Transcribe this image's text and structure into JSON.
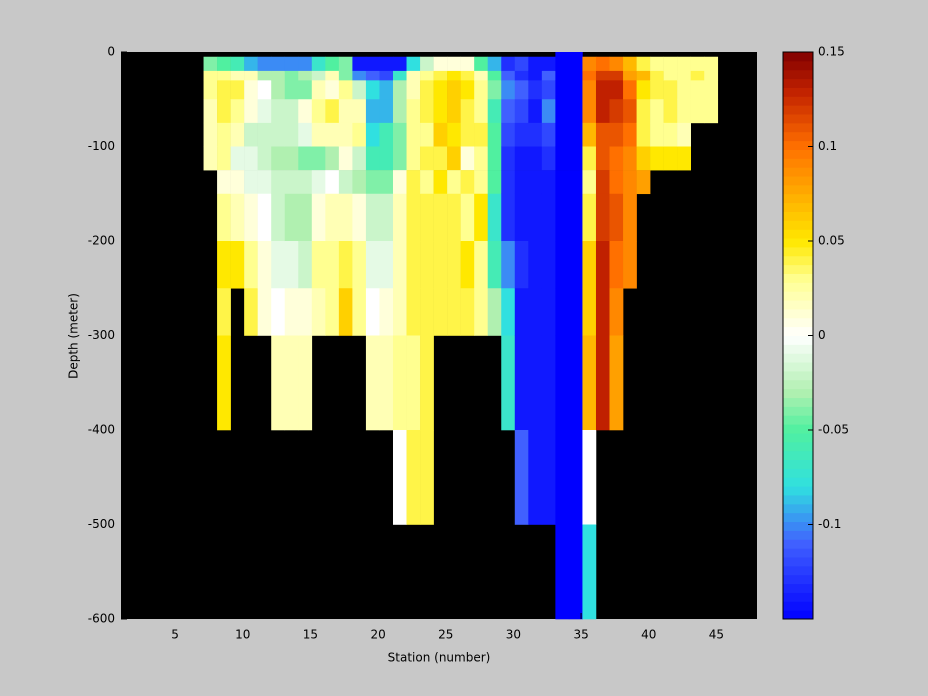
{
  "chart_data": {
    "type": "heatmap",
    "xlabel": "Station (number)",
    "ylabel": "Depth (meter)",
    "xlim": [
      1,
      48
    ],
    "ylim": [
      -600,
      0
    ],
    "xticks": [
      5,
      10,
      15,
      20,
      25,
      30,
      35,
      40,
      45
    ],
    "yticks": [
      0,
      -100,
      -200,
      -300,
      -400,
      -500,
      -600
    ],
    "clim": [
      -0.15,
      0.15
    ],
    "cticks": [
      0.15,
      0.1,
      0.05,
      0,
      -0.05,
      -0.1
    ],
    "colormap": [
      {
        "value": -0.15,
        "color": "#0000ff"
      },
      {
        "value": -0.11,
        "color": "#4060ff"
      },
      {
        "value": -0.08,
        "color": "#30e0e0"
      },
      {
        "value": -0.05,
        "color": "#50f0a0"
      },
      {
        "value": -0.03,
        "color": "#b0f0b0"
      },
      {
        "value": 0,
        "color": "#ffffff"
      },
      {
        "value": 0.03,
        "color": "#ffff90"
      },
      {
        "value": 0.05,
        "color": "#ffe800"
      },
      {
        "value": 0.08,
        "color": "#ffa000"
      },
      {
        "value": 0.1,
        "color": "#ff7000"
      },
      {
        "value": 0.13,
        "color": "#c02000"
      },
      {
        "value": 0.15,
        "color": "#800000"
      }
    ],
    "background": "#000000",
    "x": [
      8,
      9,
      10,
      11,
      12,
      13,
      14,
      15,
      16,
      17,
      18,
      19,
      20,
      21,
      22,
      23,
      24,
      25,
      26,
      27,
      28,
      29,
      30,
      31,
      32,
      33,
      34,
      35,
      36,
      37,
      38,
      39,
      40,
      41,
      42,
      43,
      44,
      45
    ],
    "depth_edges": [
      0,
      -5,
      -20,
      -30,
      -50,
      -75,
      -100,
      -125,
      -150,
      -200,
      -250,
      -300,
      -400,
      -500,
      -600
    ],
    "values": [
      [
        null,
        -0.04,
        0.03,
        0.03,
        0.02,
        0.02,
        0.02,
        null,
        null,
        null,
        null,
        null,
        null,
        null
      ],
      [
        null,
        -0.05,
        0.03,
        0.04,
        0.04,
        0.03,
        0.03,
        0.01,
        0.03,
        0.05,
        0.04,
        0.05,
        null,
        null
      ],
      [
        null,
        -0.06,
        0.02,
        0.04,
        0.03,
        0.02,
        -0.01,
        0.01,
        0.02,
        0.05,
        null,
        null,
        null,
        null
      ],
      [
        null,
        -0.09,
        0.02,
        0.01,
        0.01,
        -0.02,
        -0.01,
        -0.01,
        0.01,
        0.03,
        0.04,
        null,
        null,
        null
      ],
      [
        null,
        -0.1,
        -0.03,
        0,
        -0.01,
        -0.02,
        -0.02,
        -0.01,
        0,
        0.01,
        0.01,
        null,
        null,
        null
      ],
      [
        null,
        -0.1,
        -0.03,
        -0.03,
        -0.02,
        -0.02,
        -0.03,
        -0.02,
        -0.02,
        -0.01,
        0,
        0.02,
        null,
        null
      ],
      [
        null,
        -0.1,
        -0.04,
        -0.04,
        -0.02,
        -0.02,
        -0.03,
        -0.02,
        -0.03,
        -0.01,
        0.01,
        0.02,
        null,
        null
      ],
      [
        null,
        -0.1,
        -0.03,
        -0.04,
        0.01,
        -0.01,
        -0.04,
        -0.02,
        -0.03,
        -0.02,
        0.01,
        0.02,
        null,
        null
      ],
      [
        null,
        -0.07,
        -0.02,
        0.02,
        0.03,
        0.02,
        -0.04,
        -0.01,
        0.01,
        0.03,
        0.02,
        null,
        null,
        null
      ],
      [
        null,
        -0.05,
        0.02,
        0.01,
        0.04,
        0.02,
        -0.03,
        0,
        0.02,
        0.03,
        0.03,
        null,
        null,
        null
      ],
      [
        null,
        -0.04,
        -0.04,
        0.03,
        0.02,
        0.02,
        0.01,
        -0.02,
        0.02,
        0.04,
        0.06,
        null,
        null,
        null
      ],
      [
        null,
        -0.14,
        -0.1,
        -0.02,
        0.02,
        0.03,
        -0.02,
        -0.03,
        0.01,
        0.03,
        0.03,
        null,
        null,
        null
      ],
      [
        null,
        -0.14,
        -0.11,
        -0.08,
        -0.09,
        -0.08,
        -0.06,
        -0.04,
        -0.02,
        -0.01,
        0,
        0.02,
        null,
        null
      ],
      [
        null,
        -0.14,
        -0.12,
        -0.09,
        -0.09,
        -0.06,
        -0.06,
        -0.04,
        -0.02,
        -0.01,
        0.01,
        0.02,
        null,
        null
      ],
      [
        null,
        -0.14,
        -0.07,
        -0.03,
        -0.03,
        -0.04,
        -0.04,
        0.01,
        0.02,
        0.02,
        0.02,
        0.03,
        0,
        null
      ],
      [
        null,
        -0.08,
        0.02,
        0.02,
        0.03,
        0.03,
        0.03,
        0.04,
        0.04,
        0.04,
        0.04,
        0.03,
        0.04,
        null
      ],
      [
        null,
        -0.02,
        0.03,
        0.04,
        0.04,
        0.03,
        0.04,
        0.03,
        0.04,
        0.04,
        0.04,
        0.04,
        0.04,
        null
      ],
      [
        null,
        0.01,
        0.04,
        0.05,
        0.05,
        0.06,
        0.04,
        0.05,
        0.04,
        0.04,
        0.04,
        null,
        null,
        null
      ],
      [
        null,
        0.01,
        0.05,
        0.06,
        0.06,
        0.05,
        0.06,
        0.03,
        0.04,
        0.04,
        0.04,
        null,
        null,
        null
      ],
      [
        null,
        0.01,
        0.04,
        0.05,
        0.04,
        0.04,
        0.01,
        0.04,
        0.03,
        0.05,
        0.04,
        null,
        null,
        null
      ],
      [
        null,
        -0.05,
        0.02,
        0.03,
        0.03,
        0.04,
        0.03,
        0.03,
        0.05,
        0.03,
        0.03,
        null,
        null,
        null
      ],
      [
        null,
        -0.09,
        -0.05,
        -0.04,
        -0.06,
        -0.05,
        -0.05,
        -0.05,
        -0.07,
        -0.06,
        -0.03,
        null,
        null,
        null
      ],
      [
        null,
        -0.13,
        -0.11,
        -0.1,
        -0.11,
        -0.12,
        -0.13,
        -0.13,
        -0.13,
        -0.1,
        -0.08,
        -0.07,
        null,
        null
      ],
      [
        null,
        -0.12,
        -0.13,
        -0.11,
        -0.12,
        -0.13,
        -0.14,
        -0.14,
        -0.14,
        -0.13,
        -0.14,
        -0.14,
        -0.11,
        null
      ],
      [
        null,
        -0.14,
        -0.14,
        -0.13,
        -0.14,
        -0.13,
        -0.14,
        -0.14,
        -0.14,
        -0.14,
        -0.14,
        -0.14,
        -0.14,
        null
      ],
      [
        null,
        -0.14,
        -0.11,
        -0.12,
        -0.1,
        -0.12,
        -0.13,
        -0.14,
        -0.14,
        -0.14,
        -0.14,
        -0.14,
        -0.14,
        null
      ],
      [
        -0.15,
        -0.15,
        -0.15,
        -0.15,
        -0.15,
        -0.15,
        -0.15,
        -0.15,
        -0.15,
        -0.15,
        -0.15,
        -0.15,
        -0.15,
        -0.15
      ],
      [
        -0.15,
        -0.15,
        -0.15,
        -0.15,
        -0.15,
        -0.15,
        -0.15,
        -0.15,
        -0.15,
        -0.15,
        -0.15,
        -0.15,
        -0.15,
        -0.15
      ],
      [
        null,
        0.09,
        0.1,
        0.09,
        0.09,
        0.07,
        0.04,
        0.03,
        0.04,
        0.06,
        0.06,
        0.07,
        0,
        -0.08
      ],
      [
        null,
        0.1,
        0.12,
        0.13,
        0.13,
        0.11,
        0.11,
        0.12,
        0.12,
        0.13,
        0.13,
        0.13,
        null,
        null
      ],
      [
        null,
        0.09,
        0.12,
        0.13,
        0.12,
        0.11,
        0.1,
        0.1,
        0.11,
        0.1,
        0.09,
        0.08,
        null,
        null
      ],
      [
        null,
        0.07,
        0.08,
        0.1,
        0.11,
        0.1,
        0.09,
        0.09,
        0.09,
        0.09,
        null,
        null,
        null,
        null
      ],
      [
        null,
        0.04,
        0.07,
        0.05,
        0.04,
        0.04,
        0.06,
        0.08,
        null,
        null,
        null,
        null,
        null,
        null
      ],
      [
        null,
        0.03,
        0.04,
        0.04,
        0.03,
        0.03,
        0.05,
        null,
        null,
        null,
        null,
        null,
        null,
        null
      ],
      [
        null,
        0.03,
        0.03,
        0.04,
        0.04,
        0.03,
        0.05,
        null,
        null,
        null,
        null,
        null,
        null,
        null
      ],
      [
        null,
        0.03,
        0.03,
        0.03,
        0.03,
        0.02,
        0.05,
        null,
        null,
        null,
        null,
        null,
        null,
        null
      ],
      [
        null,
        0.03,
        0.04,
        0.03,
        0.03,
        null,
        null,
        null,
        null,
        null,
        null,
        null,
        null,
        null
      ],
      [
        null,
        0.03,
        0.03,
        0.03,
        0.03,
        null,
        null,
        null,
        null,
        null,
        null,
        null,
        null,
        null
      ]
    ]
  }
}
